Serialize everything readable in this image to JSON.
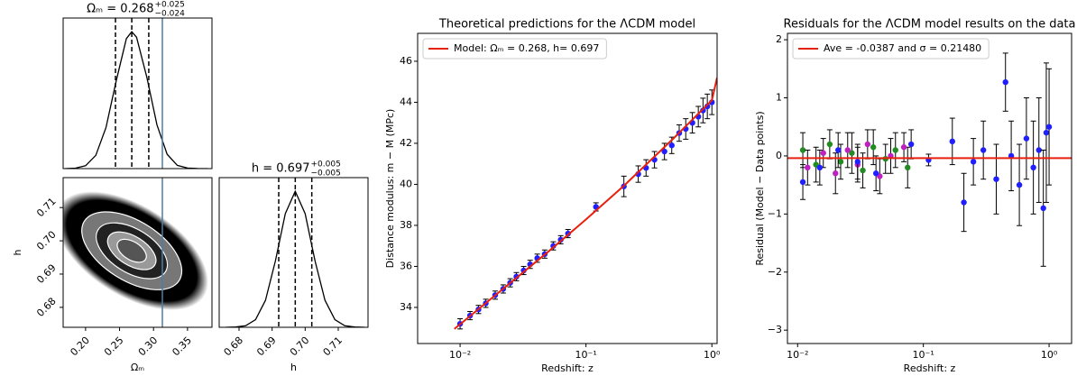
{
  "chart_data": [
    {
      "type": "line",
      "title": "Ωₘ = 0.268",
      "title_upper": "+0.025",
      "title_lower": "−0.024",
      "x": [
        0.17,
        0.185,
        0.2,
        0.215,
        0.23,
        0.245,
        0.26,
        0.268,
        0.275,
        0.29,
        0.305,
        0.32,
        0.335,
        0.35,
        0.365,
        0.38
      ],
      "values": [
        0.0003,
        0.003,
        0.021,
        0.097,
        0.3,
        0.64,
        0.95,
        1.0,
        0.96,
        0.67,
        0.32,
        0.105,
        0.024,
        0.004,
        0.0004,
        0
      ],
      "xlim": [
        0.167,
        0.386
      ],
      "ylim": [
        0,
        1.1
      ],
      "quantiles": [
        0.244,
        0.268,
        0.293
      ],
      "reference": 0.313,
      "color": "#000000",
      "reference_color": "#4a7fa8"
    },
    {
      "type": "density",
      "xlabel": "Ωₘ",
      "ylabel": "h",
      "center": [
        0.268,
        0.697
      ],
      "xlim": [
        0.167,
        0.386
      ],
      "ylim": [
        0.674,
        0.719
      ],
      "xticks": [
        {
          "value": 0.2,
          "label": "0.20"
        },
        0.25,
        {
          "value": 0.3,
          "label": "0.30"
        },
        0.35
      ],
      "yticks": [
        0.68,
        0.69,
        {
          "value": 0.7,
          "label": "0.70"
        },
        0.71
      ],
      "reference": 0.313,
      "reference_color": "#4a7fa8"
    },
    {
      "type": "line",
      "title": "h = 0.697",
      "title_upper": "+0.005",
      "title_lower": "−0.005",
      "xlabel": "h",
      "x": [
        0.676,
        0.679,
        0.682,
        0.685,
        0.688,
        0.691,
        0.694,
        0.697,
        0.7,
        0.703,
        0.706,
        0.709,
        0.712,
        0.715,
        0.718
      ],
      "values": [
        0,
        0.002,
        0.011,
        0.056,
        0.198,
        0.487,
        0.835,
        1.0,
        0.835,
        0.487,
        0.198,
        0.056,
        0.011,
        0.002,
        0
      ],
      "xlim": [
        0.674,
        0.719
      ],
      "ylim": [
        0,
        1.1
      ],
      "quantiles": [
        0.692,
        0.697,
        0.702
      ],
      "xticks": [
        0.68,
        0.69,
        {
          "value": 0.7,
          "label": "0.70"
        },
        0.71
      ],
      "color": "#000000"
    },
    {
      "type": "scatter",
      "title": "Theoretical predictions for the ΛCDM model",
      "xlabel": "Redshift: z",
      "ylabel": "Distance modulus: m − M (MPc)",
      "xscale": "log",
      "xlim": [
        0.0046,
        1.1
      ],
      "ylim": [
        32.24,
        47.36
      ],
      "xticks": [
        {
          "value": 0.01,
          "label": "10⁻²"
        },
        {
          "value": 0.1,
          "label": "10⁻¹"
        },
        {
          "value": 1,
          "label": "10⁰"
        }
      ],
      "yticks": [
        34,
        36,
        38,
        40,
        42,
        44,
        46
      ],
      "legend": "upper left",
      "series": [
        {
          "name": "Model: Ωₘ = 0.268, h= 0.697",
          "color": "#e8200c",
          "x": [
            0.009,
            0.01,
            0.02,
            0.05,
            0.1,
            0.2,
            0.5,
            1.0,
            1.1
          ],
          "values": [
            32.95,
            33.18,
            34.7,
            36.71,
            38.29,
            39.93,
            42.26,
            44.1,
            45.2
          ]
        }
      ],
      "points": {
        "color": "#1f1fff",
        "error_color": "#000000",
        "x": [
          0.01,
          0.012,
          0.014,
          0.016,
          0.019,
          0.022,
          0.025,
          0.028,
          0.032,
          0.036,
          0.041,
          0.047,
          0.055,
          0.063,
          0.072,
          0.12,
          0.2,
          0.26,
          0.3,
          0.35,
          0.42,
          0.48,
          0.55,
          0.62,
          0.7,
          0.78,
          0.85,
          0.92,
          1.0
        ],
        "values": [
          33.2,
          33.6,
          33.9,
          34.2,
          34.6,
          34.9,
          35.2,
          35.5,
          35.8,
          36.1,
          36.4,
          36.6,
          37.0,
          37.3,
          37.6,
          38.9,
          39.9,
          40.5,
          40.8,
          41.2,
          41.6,
          41.9,
          42.5,
          42.7,
          43.0,
          43.3,
          43.6,
          43.8,
          44.0
        ],
        "errors": [
          0.25,
          0.2,
          0.2,
          0.2,
          0.2,
          0.2,
          0.2,
          0.2,
          0.2,
          0.2,
          0.2,
          0.2,
          0.2,
          0.2,
          0.2,
          0.2,
          0.5,
          0.4,
          0.4,
          0.4,
          0.4,
          0.4,
          0.4,
          0.5,
          0.5,
          0.5,
          0.6,
          0.6,
          0.6
        ]
      }
    },
    {
      "type": "scatter",
      "title": "Residuals for the ΛCDM model results on the data",
      "xlabel": "Redshift: z",
      "ylabel": "Residual (Model − Data points)",
      "xscale": "log",
      "xlim": [
        0.0083,
        1.51
      ],
      "ylim": [
        -3.23,
        2.11
      ],
      "xticks": [
        {
          "value": 0.01,
          "label": "10⁻²"
        },
        {
          "value": 0.1,
          "label": "10⁻¹"
        },
        {
          "value": 1,
          "label": "10⁰"
        }
      ],
      "yticks": [
        {
          "value": -3,
          "label": "−3"
        },
        {
          "value": -2,
          "label": "−2"
        },
        {
          "value": -1,
          "label": "−1"
        },
        0,
        1,
        2
      ],
      "legend": "upper left",
      "mean_label": "Ave = -0.0387 and σ = 0.21480",
      "mean": -0.0387,
      "mean_color": "#e8200c",
      "series": [
        {
          "color": "#228b22",
          "x": [
            0.011,
            0.014,
            0.018,
            0.022,
            0.027,
            0.033,
            0.04,
            0.05,
            0.06,
            0.075
          ],
          "values": [
            0.1,
            -0.15,
            0.2,
            -0.1,
            0.05,
            -0.25,
            0.15,
            -0.05,
            0.1,
            -0.2
          ],
          "errors": [
            0.3,
            0.3,
            0.25,
            0.3,
            0.35,
            0.3,
            0.3,
            0.25,
            0.3,
            0.35
          ]
        },
        {
          "color": "#c020c0",
          "x": [
            0.012,
            0.016,
            0.02,
            0.025,
            0.03,
            0.036,
            0.045,
            0.055,
            0.07
          ],
          "values": [
            -0.2,
            0.05,
            -0.3,
            0.1,
            -0.15,
            0.2,
            -0.35,
            0.0,
            0.15
          ],
          "errors": [
            0.3,
            0.25,
            0.35,
            0.3,
            0.3,
            0.25,
            0.3,
            0.3,
            0.25
          ]
        },
        {
          "color": "#1f1fff",
          "x": [
            0.011,
            0.015,
            0.021,
            0.03,
            0.042,
            0.08,
            0.11,
            0.17,
            0.21,
            0.25,
            0.3,
            0.38,
            0.45,
            0.5,
            0.58,
            0.66,
            0.75,
            0.83,
            0.9,
            0.95,
            1.0
          ],
          "values": [
            -0.45,
            -0.2,
            0.1,
            -0.1,
            -0.3,
            0.2,
            -0.07,
            0.25,
            -0.8,
            -0.1,
            0.1,
            -0.4,
            1.27,
            0.0,
            -0.5,
            0.3,
            -0.2,
            0.1,
            -0.9,
            0.4,
            0.5
          ],
          "errors": [
            0.3,
            0.3,
            0.3,
            0.3,
            0.3,
            0.25,
            0.1,
            0.4,
            0.5,
            0.4,
            0.5,
            0.6,
            0.5,
            0.6,
            0.7,
            0.7,
            0.8,
            0.9,
            1.0,
            1.2,
            1.0
          ]
        }
      ]
    }
  ]
}
